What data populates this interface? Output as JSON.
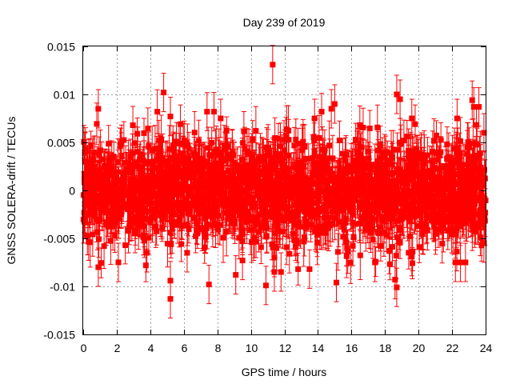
{
  "chart_data": {
    "type": "scatter",
    "title": "Day 239 of 2019",
    "xlabel": "GPS time / hours",
    "ylabel": "GNSS SOLERA-drift / TECUs",
    "xlim": [
      0,
      24
    ],
    "ylim": [
      -0.015,
      0.015
    ],
    "xticks": [
      0,
      2,
      4,
      6,
      8,
      10,
      12,
      14,
      16,
      18,
      20,
      22,
      24
    ],
    "xtick_labels": [
      "0",
      "2",
      "4",
      "6",
      "8",
      "10",
      "12",
      "14",
      "16",
      "18",
      "20",
      "22",
      "24"
    ],
    "yticks": [
      -0.015,
      -0.01,
      -0.005,
      0,
      0.005,
      0.01,
      0.015
    ],
    "ytick_labels": [
      "-0.015",
      "-0.01",
      "-0.005",
      "0",
      "0.005",
      "0.01",
      "0.015"
    ],
    "grid": true,
    "series_color": "#ff0000",
    "error_bars": true,
    "typical_error": 0.002,
    "dense_cloud": {
      "x_range": [
        0,
        24
      ],
      "center": 0.0,
      "spread_std": 0.0025,
      "count": 2200
    },
    "outliers": [
      {
        "x": 0.1,
        "y": 0.004
      },
      {
        "x": 0.9,
        "y": 0.0085
      },
      {
        "x": 0.9,
        "y": -0.008
      },
      {
        "x": 2.1,
        "y": -0.0075
      },
      {
        "x": 3.1,
        "y": -0.0045
      },
      {
        "x": 3.8,
        "y": -0.0065
      },
      {
        "x": 4.8,
        "y": 0.0102
      },
      {
        "x": 5.2,
        "y": 0.0077
      },
      {
        "x": 5.2,
        "y": -0.0094
      },
      {
        "x": 5.2,
        "y": -0.0113
      },
      {
        "x": 5.8,
        "y": 0.0069
      },
      {
        "x": 6.2,
        "y": -0.0065
      },
      {
        "x": 7.5,
        "y": -0.0098
      },
      {
        "x": 7.8,
        "y": 0.0082
      },
      {
        "x": 8.2,
        "y": 0.0075
      },
      {
        "x": 9.1,
        "y": -0.0088
      },
      {
        "x": 9.5,
        "y": -0.0073
      },
      {
        "x": 11.3,
        "y": 0.0131
      },
      {
        "x": 10.9,
        "y": -0.0099
      },
      {
        "x": 11.4,
        "y": -0.0085
      },
      {
        "x": 11.8,
        "y": -0.0085
      },
      {
        "x": 11.4,
        "y": -0.007
      },
      {
        "x": 12.3,
        "y": -0.0066
      },
      {
        "x": 13.8,
        "y": 0.0075
      },
      {
        "x": 13.5,
        "y": -0.0082
      },
      {
        "x": 14.8,
        "y": 0.0085
      },
      {
        "x": 15.0,
        "y": 0.009
      },
      {
        "x": 15.1,
        "y": -0.0096
      },
      {
        "x": 16.5,
        "y": 0.0068
      },
      {
        "x": 17.4,
        "y": -0.0075
      },
      {
        "x": 18.6,
        "y": -0.0093
      },
      {
        "x": 18.7,
        "y": -0.0101
      },
      {
        "x": 18.7,
        "y": 0.01
      },
      {
        "x": 18.9,
        "y": 0.0095
      },
      {
        "x": 19.6,
        "y": 0.0075
      },
      {
        "x": 19.8,
        "y": 0.0069
      },
      {
        "x": 19.6,
        "y": -0.0069
      },
      {
        "x": 22.3,
        "y": 0.0075
      },
      {
        "x": 22.5,
        "y": -0.0075
      },
      {
        "x": 22.2,
        "y": -0.0075
      },
      {
        "x": 23.2,
        "y": 0.0094
      },
      {
        "x": 23.3,
        "y": 0.0087
      },
      {
        "x": 23.6,
        "y": 0.0087
      },
      {
        "x": 23.9,
        "y": 0.006
      },
      {
        "x": 23.9,
        "y": -0.0055
      },
      {
        "x": 22.8,
        "y": -0.0075
      }
    ]
  }
}
